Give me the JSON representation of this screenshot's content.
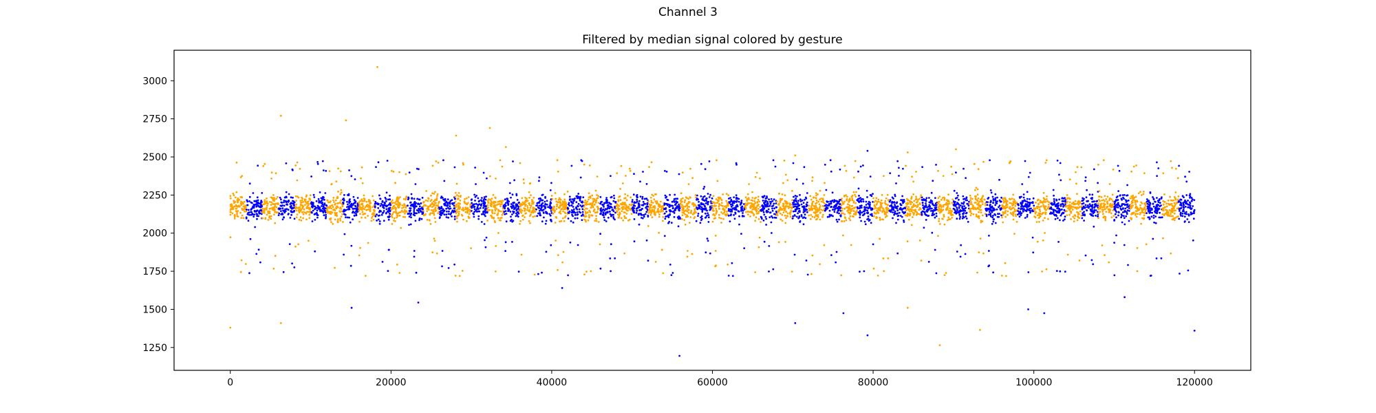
{
  "suptitle": "Channel 3",
  "chart_data": {
    "type": "scatter",
    "title": "Filtered by median signal colored by gesture",
    "xlabel": "",
    "ylabel": "",
    "xlim": [
      -7000,
      127000
    ],
    "ylim": [
      1100,
      3200
    ],
    "xticks": [
      0,
      20000,
      40000,
      60000,
      80000,
      100000,
      120000
    ],
    "xtick_labels": [
      "0",
      "20000",
      "40000",
      "60000",
      "80000",
      "100000",
      "120000"
    ],
    "yticks": [
      1250,
      1500,
      1750,
      2000,
      2250,
      2500,
      2750,
      3000
    ],
    "ytick_labels": [
      "1250",
      "1500",
      "1750",
      "2000",
      "2250",
      "2500",
      "2750",
      "3000"
    ],
    "grid": false,
    "colors": {
      "gesture_a": "#ffa500",
      "gesture_b": "#0000ff"
    },
    "band": {
      "x_range": [
        0,
        120000
      ],
      "y_center": 2170,
      "segment_count": 60
    },
    "outliers": [
      {
        "x": 0,
        "y": 1380,
        "c": "gesture_a"
      },
      {
        "x": 6300,
        "y": 2770,
        "c": "gesture_a"
      },
      {
        "x": 6300,
        "y": 1410,
        "c": "gesture_a"
      },
      {
        "x": 14400,
        "y": 2740,
        "c": "gesture_a"
      },
      {
        "x": 15100,
        "y": 1510,
        "c": "gesture_b"
      },
      {
        "x": 18300,
        "y": 3090,
        "c": "gesture_a"
      },
      {
        "x": 23400,
        "y": 1545,
        "c": "gesture_b"
      },
      {
        "x": 28100,
        "y": 2640,
        "c": "gesture_a"
      },
      {
        "x": 32300,
        "y": 2690,
        "c": "gesture_a"
      },
      {
        "x": 34300,
        "y": 2565,
        "c": "gesture_a"
      },
      {
        "x": 41300,
        "y": 1640,
        "c": "gesture_b"
      },
      {
        "x": 55900,
        "y": 1195,
        "c": "gesture_b"
      },
      {
        "x": 70300,
        "y": 1410,
        "c": "gesture_b"
      },
      {
        "x": 70300,
        "y": 2510,
        "c": "gesture_a"
      },
      {
        "x": 76300,
        "y": 1475,
        "c": "gesture_b"
      },
      {
        "x": 79300,
        "y": 1330,
        "c": "gesture_b"
      },
      {
        "x": 79300,
        "y": 2540,
        "c": "gesture_b"
      },
      {
        "x": 84300,
        "y": 2530,
        "c": "gesture_a"
      },
      {
        "x": 84300,
        "y": 1510,
        "c": "gesture_a"
      },
      {
        "x": 88300,
        "y": 1265,
        "c": "gesture_a"
      },
      {
        "x": 90300,
        "y": 2550,
        "c": "gesture_a"
      },
      {
        "x": 93300,
        "y": 1365,
        "c": "gesture_a"
      },
      {
        "x": 99300,
        "y": 1500,
        "c": "gesture_b"
      },
      {
        "x": 101300,
        "y": 1475,
        "c": "gesture_b"
      },
      {
        "x": 103300,
        "y": 2460,
        "c": "gesture_b"
      },
      {
        "x": 111300,
        "y": 1580,
        "c": "gesture_b"
      },
      {
        "x": 115300,
        "y": 2465,
        "c": "gesture_b"
      },
      {
        "x": 120000,
        "y": 1360,
        "c": "gesture_b"
      }
    ]
  }
}
